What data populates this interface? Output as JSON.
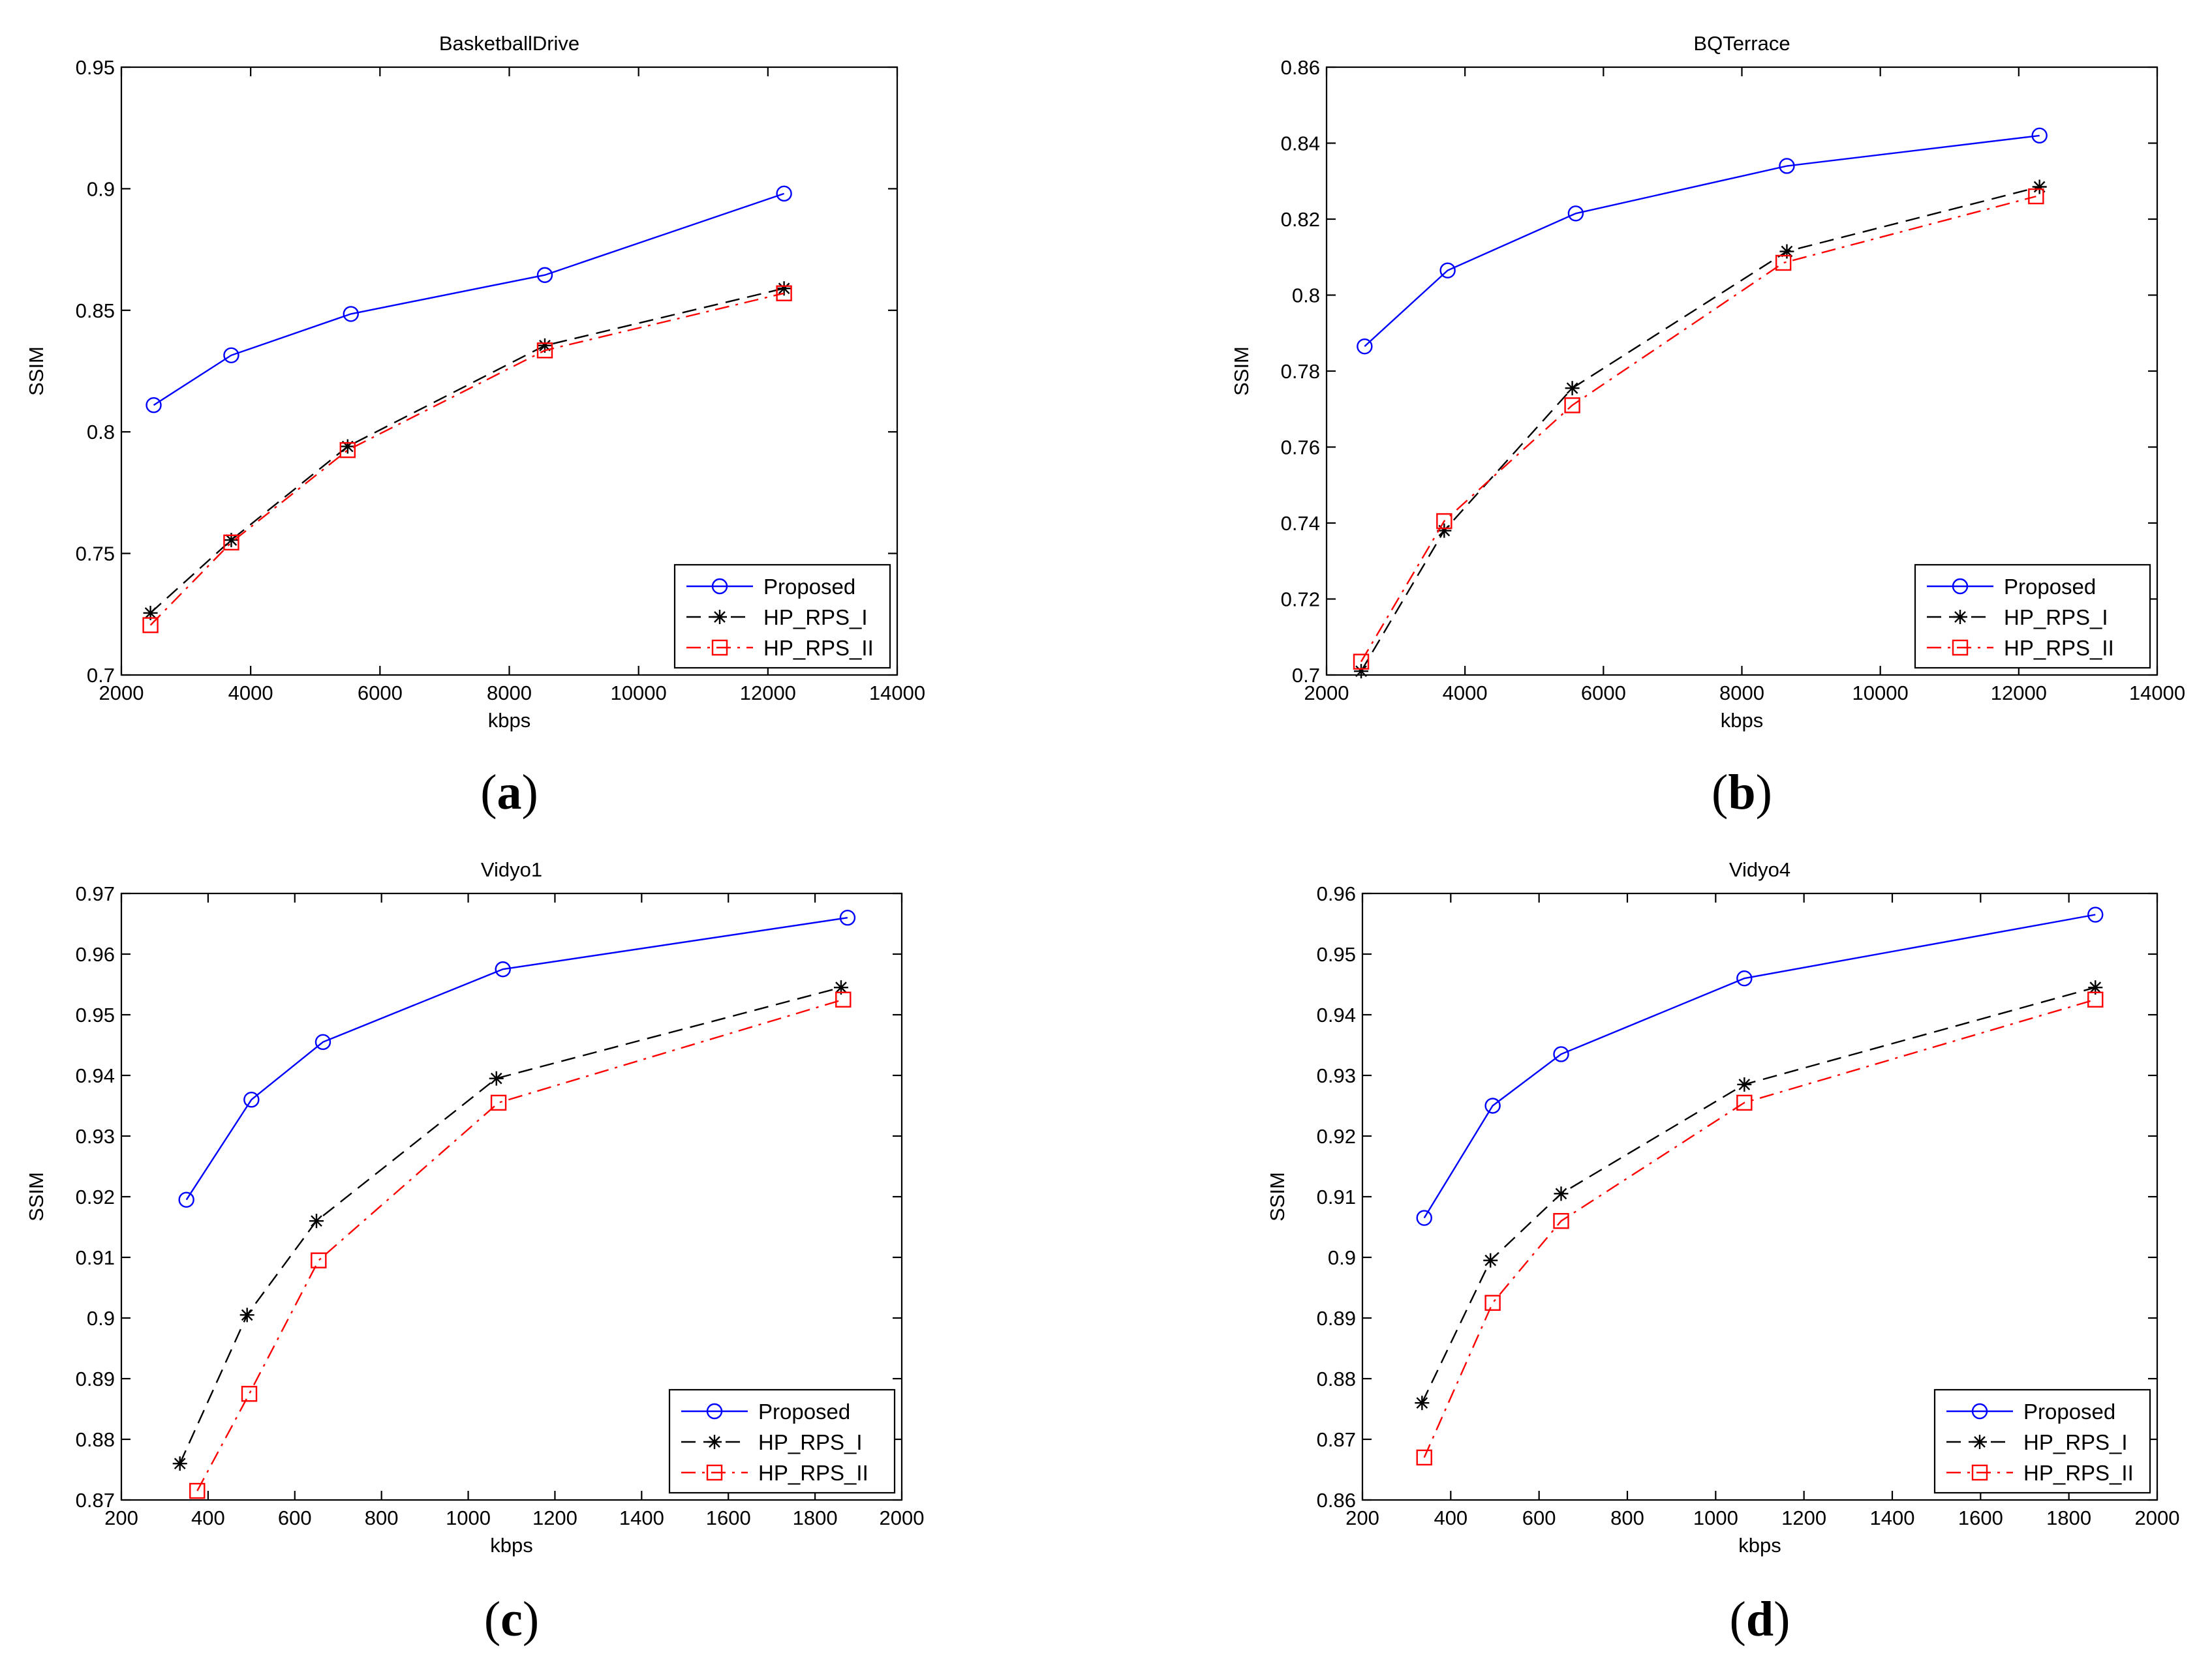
{
  "colors": {
    "proposed": "#0000ff",
    "hp_rps_i": "#000000",
    "hp_rps_ii": "#ff0000"
  },
  "legend": [
    "Proposed",
    "HP_RPS_I",
    "HP_RPS_II"
  ],
  "subfigure_labels": [
    {
      "open": "(",
      "letter": "a",
      "close": ")"
    },
    {
      "open": "(",
      "letter": "b",
      "close": ")"
    },
    {
      "open": "(",
      "letter": "c",
      "close": ")"
    },
    {
      "open": "(",
      "letter": "d",
      "close": ")"
    }
  ],
  "chart_data": [
    {
      "type": "line",
      "title": "BasketballDrive",
      "xlabel": "kbps",
      "ylabel": "SSIM",
      "xlim": [
        2000,
        14000
      ],
      "ylim": [
        0.7,
        0.95
      ],
      "xticks": [
        2000,
        4000,
        6000,
        8000,
        10000,
        12000,
        14000
      ],
      "xtick_labels": [
        "2000",
        "4000",
        "6000",
        "8000",
        "10000",
        "12000",
        "14000"
      ],
      "yticks": [
        0.7,
        0.75,
        0.8,
        0.85,
        0.9,
        0.95
      ],
      "ytick_labels": [
        "0.7",
        "0.75",
        "0.8",
        "0.85",
        "0.9",
        "0.95"
      ],
      "legend_position": "bottom-right",
      "series": [
        {
          "name": "Proposed",
          "x": [
            2500,
            3700,
            5550,
            8550,
            12250
          ],
          "values": [
            0.811,
            0.8315,
            0.8485,
            0.8645,
            0.898
          ]
        },
        {
          "name": "HP_RPS_I",
          "x": [
            2450,
            3700,
            5500,
            8550,
            12250
          ],
          "values": [
            0.7255,
            0.7555,
            0.794,
            0.8355,
            0.859
          ]
        },
        {
          "name": "HP_RPS_II",
          "x": [
            2450,
            3700,
            5500,
            8550,
            12250
          ],
          "values": [
            0.7205,
            0.7545,
            0.7925,
            0.8335,
            0.857
          ]
        }
      ]
    },
    {
      "type": "line",
      "title": "BQTerrace",
      "xlabel": "kbps",
      "ylabel": "SSIM",
      "xlim": [
        2000,
        14000
      ],
      "ylim": [
        0.7,
        0.86
      ],
      "xticks": [
        2000,
        4000,
        6000,
        8000,
        10000,
        12000,
        14000
      ],
      "xtick_labels": [
        "2000",
        "4000",
        "6000",
        "8000",
        "10000",
        "12000",
        "14000"
      ],
      "yticks": [
        0.7,
        0.72,
        0.74,
        0.76,
        0.78,
        0.8,
        0.82,
        0.84,
        0.86
      ],
      "ytick_labels": [
        "0.7",
        "0.72",
        "0.74",
        "0.76",
        "0.78",
        "0.8",
        "0.82",
        "0.84",
        "0.86"
      ],
      "legend_position": "bottom-right",
      "series": [
        {
          "name": "Proposed",
          "x": [
            2550,
            3750,
            5600,
            8650,
            12300
          ],
          "values": [
            0.7865,
            0.8065,
            0.8215,
            0.834,
            0.842
          ]
        },
        {
          "name": "HP_RPS_I",
          "x": [
            2500,
            3700,
            5550,
            8650,
            12300
          ],
          "values": [
            0.701,
            0.738,
            0.7755,
            0.8115,
            0.8285
          ]
        },
        {
          "name": "HP_RPS_II",
          "x": [
            2500,
            3700,
            5550,
            8600,
            12250
          ],
          "values": [
            0.7035,
            0.7405,
            0.771,
            0.8085,
            0.826
          ]
        }
      ]
    },
    {
      "type": "line",
      "title": "Vidyo1",
      "xlabel": "kbps",
      "ylabel": "SSIM",
      "xlim": [
        200,
        2000
      ],
      "ylim": [
        0.87,
        0.97
      ],
      "xticks": [
        200,
        400,
        600,
        800,
        1000,
        1200,
        1400,
        1600,
        1800,
        2000
      ],
      "xtick_labels": [
        "200",
        "400",
        "600",
        "800",
        "1000",
        "1200",
        "1400",
        "1600",
        "1800",
        "2000"
      ],
      "yticks": [
        0.87,
        0.88,
        0.89,
        0.9,
        0.91,
        0.92,
        0.93,
        0.94,
        0.95,
        0.96,
        0.97
      ],
      "ytick_labels": [
        "0.87",
        "0.88",
        "0.89",
        "0.9",
        "0.91",
        "0.92",
        "0.93",
        "0.94",
        "0.95",
        "0.96",
        "0.97"
      ],
      "legend_position": "bottom-right",
      "series": [
        {
          "name": "Proposed",
          "x": [
            350,
            500,
            665,
            1080,
            1875
          ],
          "values": [
            0.9195,
            0.936,
            0.9455,
            0.9575,
            0.966
          ]
        },
        {
          "name": "HP_RPS_I",
          "x": [
            335,
            490,
            650,
            1065,
            1860
          ],
          "values": [
            0.876,
            0.9005,
            0.916,
            0.9395,
            0.9545
          ]
        },
        {
          "name": "HP_RPS_II",
          "x": [
            375,
            495,
            655,
            1070,
            1865
          ],
          "values": [
            0.8715,
            0.8875,
            0.9095,
            0.9355,
            0.9525
          ]
        }
      ]
    },
    {
      "type": "line",
      "title": "Vidyo4",
      "xlabel": "kbps",
      "ylabel": "SSIM",
      "xlim": [
        200,
        2000
      ],
      "ylim": [
        0.86,
        0.96
      ],
      "xticks": [
        200,
        400,
        600,
        800,
        1000,
        1200,
        1400,
        1600,
        1800,
        2000
      ],
      "xtick_labels": [
        "200",
        "400",
        "600",
        "800",
        "1000",
        "1200",
        "1400",
        "1600",
        "1800",
        "2000"
      ],
      "yticks": [
        0.86,
        0.87,
        0.88,
        0.89,
        0.9,
        0.91,
        0.92,
        0.93,
        0.94,
        0.95,
        0.96
      ],
      "ytick_labels": [
        "0.86",
        "0.87",
        "0.88",
        "0.89",
        "0.9",
        "0.91",
        "0.92",
        "0.93",
        "0.94",
        "0.95",
        "0.96"
      ],
      "legend_position": "bottom-right",
      "series": [
        {
          "name": "Proposed",
          "x": [
            340,
            495,
            650,
            1065,
            1860
          ],
          "values": [
            0.9065,
            0.925,
            0.9335,
            0.946,
            0.9565
          ]
        },
        {
          "name": "HP_RPS_I",
          "x": [
            335,
            490,
            650,
            1065,
            1860
          ],
          "values": [
            0.876,
            0.8995,
            0.9105,
            0.9285,
            0.9445
          ]
        },
        {
          "name": "HP_RPS_II",
          "x": [
            340,
            495,
            650,
            1065,
            1860
          ],
          "values": [
            0.867,
            0.8925,
            0.906,
            0.9255,
            0.9425
          ]
        }
      ]
    }
  ]
}
